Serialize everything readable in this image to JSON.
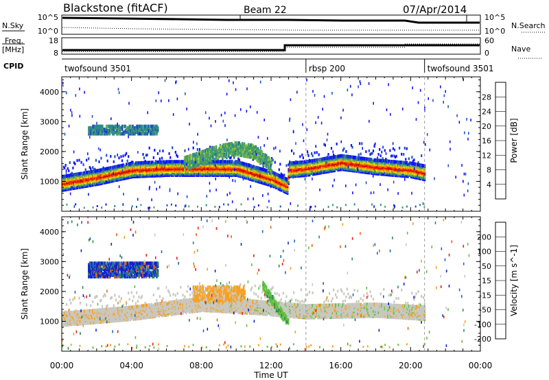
{
  "header": {
    "radar": "Blackstone (fitACF)",
    "beam": "Beam 22",
    "date": "07/Apr/2014"
  },
  "status": {
    "nsky_label": "N.Sky",
    "nsearch_label": "N.Search",
    "freq_label": "Freq.",
    "freq_unit": "[MHz]",
    "nave_label": "Nave",
    "cpid_label": "CPID",
    "noise_ticks": [
      "10^5",
      "10^0"
    ],
    "freq_ticks": [
      "18",
      "8"
    ],
    "nave_ticks": [
      "60",
      "0"
    ]
  },
  "cpid_segments": [
    {
      "start": 0,
      "end": 14,
      "name": "twofsound 3501"
    },
    {
      "start": 14,
      "end": 20.8,
      "name": "rbsp 200"
    },
    {
      "start": 20.8,
      "end": 24,
      "name": "twofsound 3501"
    }
  ],
  "chart_data": [
    {
      "type": "heatmap",
      "title": "Power",
      "ylabel": "Slant Range [km]",
      "xlabel": "",
      "xlim": [
        0,
        24
      ],
      "ylim": [
        0,
        4500
      ],
      "x_ticks": [
        "00:00",
        "04:00",
        "08:00",
        "12:00",
        "16:00",
        "20:00",
        "00:00"
      ],
      "y_ticks": [
        1000,
        2000,
        3000,
        4000
      ],
      "colorbar": {
        "label": "Power [dB]",
        "ticks": [
          "4",
          "8",
          "12",
          "16",
          "20",
          "24",
          "28"
        ],
        "colors": [
          "#1010ff",
          "#2050c0",
          "#2e8a8a",
          "#4aa060",
          "#8cc040",
          "#f0e000",
          "#f8a800",
          "#f86000",
          "#e82000",
          "#d00000"
        ]
      },
      "features": [
        {
          "name": "main-echo-band",
          "time_h": [
            0,
            2,
            4,
            6,
            8,
            10,
            12,
            12.9,
            13,
            14,
            16,
            18,
            20,
            20.8
          ],
          "range_km": [
            950,
            1150,
            1400,
            1450,
            1450,
            1450,
            1100,
            850,
            1400,
            1450,
            1650,
            1500,
            1400,
            1300
          ],
          "power_db": 24
        },
        {
          "name": "upper-echo-patch",
          "time_h": [
            1.5,
            5.5
          ],
          "range_km": [
            2600,
            2900
          ],
          "power_db": 10
        },
        {
          "name": "rising-echo-arc",
          "time_h": [
            7,
            9,
            10,
            11,
            12
          ],
          "range_km": [
            1600,
            2000,
            2100,
            2000,
            1500
          ],
          "power_db": 14
        }
      ]
    },
    {
      "type": "heatmap",
      "title": "Velocity",
      "ylabel": "Slant Range [km]",
      "xlabel": "Time UT",
      "xlim": [
        0,
        24
      ],
      "ylim": [
        0,
        4500
      ],
      "x_ticks": [
        "00:00",
        "04:00",
        "08:00",
        "12:00",
        "16:00",
        "20:00",
        "00:00"
      ],
      "y_ticks": [
        1000,
        2000,
        3000,
        4000
      ],
      "colorbar": {
        "label": "Velocity [m s^-1]",
        "ticks": [
          "200",
          "100",
          "50",
          "15",
          "-15",
          "-50",
          "-100",
          "-200"
        ],
        "colors": [
          "#1020d0",
          "#2060c0",
          "#2a8a50",
          "#60c040",
          "#c8c8c0",
          "#f8a020",
          "#f86000",
          "#e81818"
        ]
      },
      "features": [
        {
          "name": "ground-scatter-band",
          "time_h": [
            0,
            4,
            8,
            11,
            14,
            18,
            20.8
          ],
          "range_km": [
            1100,
            1300,
            1600,
            1500,
            1350,
            1400,
            1300
          ],
          "velocity": 0
        },
        {
          "name": "negative-velocity-patch",
          "time_h": [
            7.5,
            10.5
          ],
          "range_km": [
            1700,
            2200
          ],
          "velocity": -40
        },
        {
          "name": "positive-velocity-streak",
          "time_h": [
            11.5,
            13
          ],
          "range_km": [
            2200,
            900
          ],
          "velocity": 30
        },
        {
          "name": "upper-velocity-patch",
          "time_h": [
            1.5,
            5.5
          ],
          "range_km": [
            2500,
            3000
          ],
          "velocity": 120
        }
      ]
    }
  ]
}
